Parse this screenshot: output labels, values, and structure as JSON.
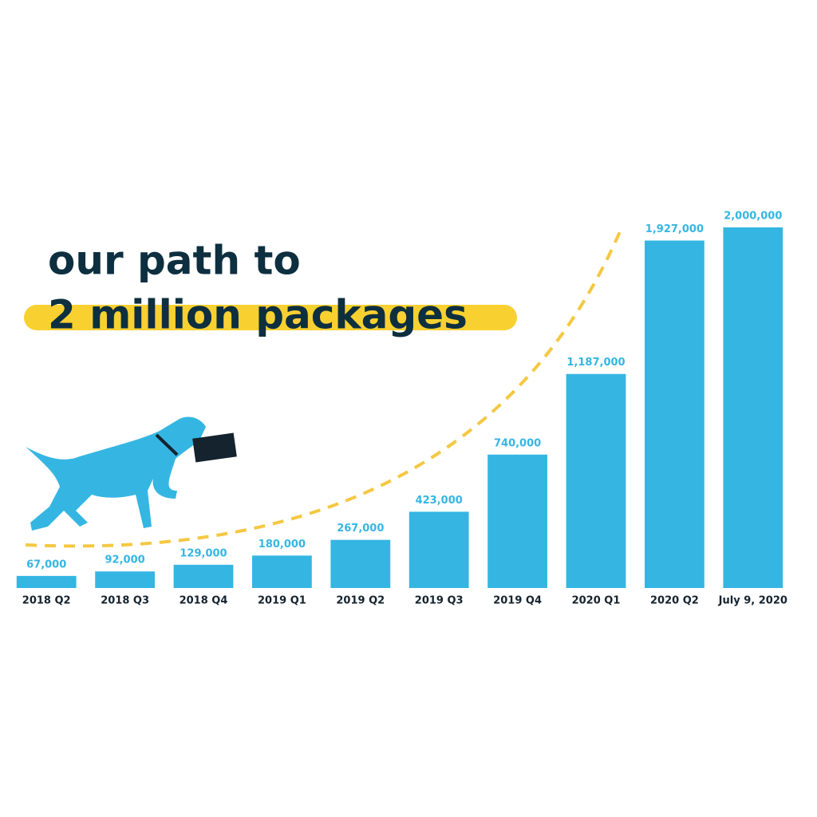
{
  "chart_data": {
    "type": "bar",
    "title": "our path to",
    "subtitle": "2 million packages",
    "categories": [
      "2018 Q2",
      "2018 Q3",
      "2018 Q4",
      "2019 Q1",
      "2019 Q2",
      "2019 Q3",
      "2019 Q4",
      "2020 Q1",
      "2020 Q2",
      "July 9, 2020"
    ],
    "values": [
      67000,
      92000,
      129000,
      180000,
      267000,
      423000,
      740000,
      1187000,
      1927000,
      2000000
    ],
    "value_labels": [
      "67,000",
      "92,000",
      "129,000",
      "180,000",
      "267,000",
      "423,000",
      "740,000",
      "1,187,000",
      "1,927,000",
      "2,000,000"
    ],
    "color": "#35b6e2",
    "ylim": [
      0,
      2000000
    ]
  }
}
